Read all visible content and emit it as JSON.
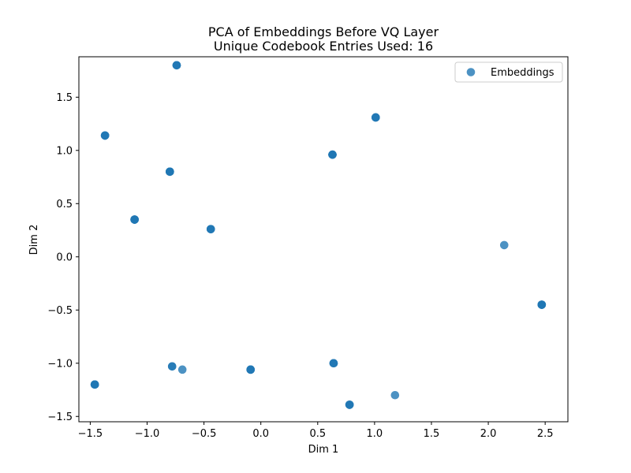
{
  "chart_data": {
    "type": "scatter",
    "title": "PCA of Embeddings Before VQ Layer",
    "subtitle": "Unique Codebook Entries Used: 16",
    "xlabel": "Dim 1",
    "ylabel": "Dim 2",
    "xlim": [
      -1.6,
      2.7
    ],
    "ylim": [
      -1.55,
      1.88
    ],
    "xticks": [
      -1.5,
      -1.0,
      -0.5,
      0.0,
      0.5,
      1.0,
      1.5,
      2.0,
      2.5
    ],
    "xtick_labels": [
      "−1.5",
      "−1.0",
      "−0.5",
      "0.0",
      "0.5",
      "1.0",
      "1.5",
      "2.0",
      "2.5"
    ],
    "yticks": [
      -1.5,
      -1.0,
      -0.5,
      0.0,
      0.5,
      1.0,
      1.5
    ],
    "ytick_labels": [
      "−1.5",
      "−1.0",
      "−0.5",
      "0.0",
      "0.5",
      "1.0",
      "1.5"
    ],
    "grid": false,
    "legend_position": "top-right",
    "series": [
      {
        "name": "Embeddings",
        "color": "#1f77b4",
        "points": [
          {
            "x": -0.74,
            "y": 1.8,
            "n": 3
          },
          {
            "x": -1.37,
            "y": 1.14,
            "n": 3
          },
          {
            "x": 1.01,
            "y": 1.31,
            "n": 3
          },
          {
            "x": 0.63,
            "y": 0.96,
            "n": 4
          },
          {
            "x": -0.8,
            "y": 0.8,
            "n": 4
          },
          {
            "x": -1.11,
            "y": 0.35,
            "n": 4
          },
          {
            "x": -0.44,
            "y": 0.26,
            "n": 3
          },
          {
            "x": 2.14,
            "y": 0.11,
            "n": 1
          },
          {
            "x": 2.47,
            "y": -0.45,
            "n": 4
          },
          {
            "x": 0.64,
            "y": -1.0,
            "n": 3
          },
          {
            "x": -0.78,
            "y": -1.03,
            "n": 2
          },
          {
            "x": -0.69,
            "y": -1.06,
            "n": 1
          },
          {
            "x": -0.09,
            "y": -1.06,
            "n": 3
          },
          {
            "x": -1.46,
            "y": -1.2,
            "n": 4
          },
          {
            "x": 1.18,
            "y": -1.3,
            "n": 1
          },
          {
            "x": 0.78,
            "y": -1.39,
            "n": 3
          }
        ]
      }
    ]
  }
}
